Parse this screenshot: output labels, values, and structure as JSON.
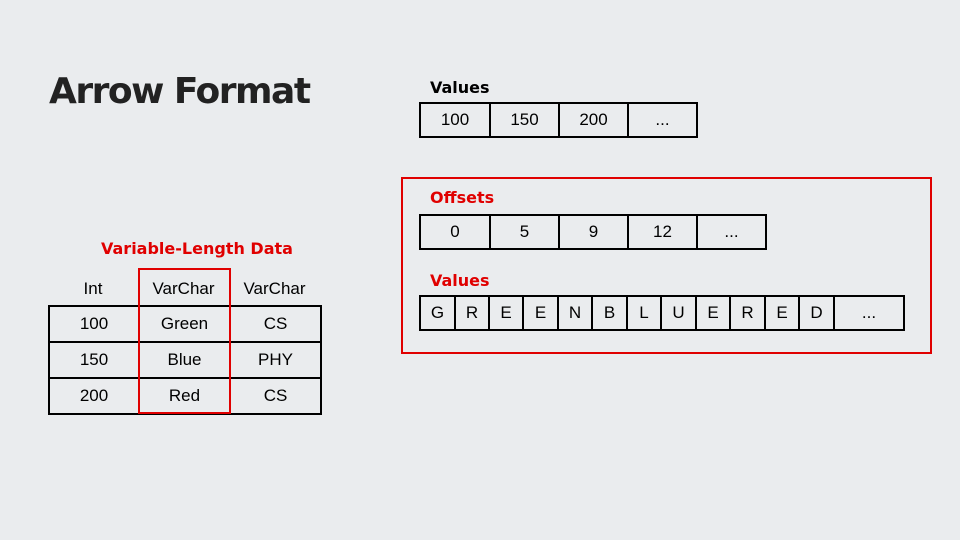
{
  "slide": {
    "title": "Arrow Format"
  },
  "fixed_values": {
    "label": "Values",
    "cells": [
      "100",
      "150",
      "200",
      "..."
    ]
  },
  "variable_section": {
    "label": "Variable-Length Data",
    "columns": [
      "Int",
      "VarChar",
      "VarChar"
    ],
    "rows": [
      [
        "100",
        "Green",
        "CS"
      ],
      [
        "150",
        "Blue",
        "PHY"
      ],
      [
        "200",
        "Red",
        "CS"
      ]
    ]
  },
  "offsets": {
    "label": "Offsets",
    "cells": [
      "0",
      "5",
      "9",
      "12",
      "..."
    ]
  },
  "char_values": {
    "label": "Values",
    "cells": [
      "G",
      "R",
      "E",
      "E",
      "N",
      "B",
      "L",
      "U",
      "E",
      "R",
      "E",
      "D",
      "..."
    ]
  },
  "colors": {
    "highlight": "#e00000",
    "background": "#eaecee"
  }
}
